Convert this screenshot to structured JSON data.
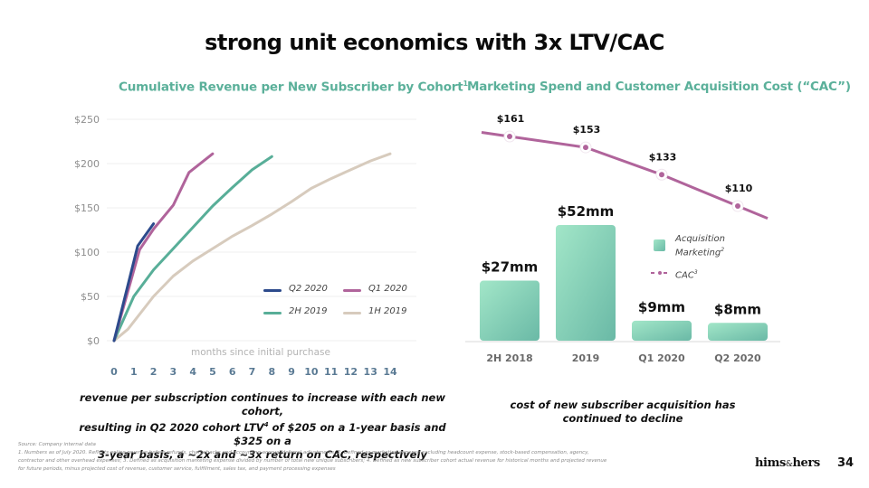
{
  "slide": {
    "title": "strong unit economics with 3x LTV/CAC",
    "page_number": "34",
    "brand": {
      "left": "hims",
      "amp": "&",
      "right": "hers"
    },
    "colors": {
      "accent_teal": "#5bb09a",
      "q2_2020": "#2c4a8c",
      "q1_2020": "#b0649b",
      "h2_2019": "#58ae98",
      "h1_2019": "#d7cbbd",
      "bar_top": "#9fe3c4",
      "bar_bottom": "#6cbca8",
      "cac_line": "#b0649b"
    }
  },
  "left_panel": {
    "subtitle": "Cumulative Revenue per New Subscriber by Cohort",
    "subtitle_sup": "1",
    "caption_lines": [
      "revenue per subscription continues to increase with each new cohort,",
      "resulting in Q2 2020 cohort LTV",
      "4",
      " of $205 on a 1-year basis and $325 on a",
      "3-year basis, a ~2x and ~3x return on CAC, respectively"
    ]
  },
  "right_panel": {
    "subtitle": "Marketing Spend and Customer Acquisition Cost (“CAC”)",
    "caption_lines": [
      "cost of new subscriber acquisition has",
      "continued to decline"
    ],
    "legend": {
      "bar_label_1": "Acquisition",
      "bar_label_2": "Marketing",
      "bar_sup": "2",
      "line_label": "CAC",
      "line_sup": "3"
    }
  },
  "footnotes": [
    "Source: Company internal data",
    "1. Numbers as of July 2020. Reflects online revenue before refunds, chargebacks and accounting accrual/deferral adjustments; 2. Defined as marketing expense excluding headcount expense, stock-based compensation, agency,",
    "contractor and other overhead expenses; 3. Defined as acquisition marketing expense divided by number of total new unique subscribers; 4. Defined as new subscriber cohort actual revenue for historical months and projected revenue",
    "for future periods, minus projected cost of revenue, customer service, fulfillment, sales tax, and payment processing expenses"
  ],
  "chart_data": [
    {
      "type": "line",
      "title": "Cumulative Revenue per New Subscriber by Cohort",
      "xlabel": "months since initial purchase",
      "ylabel": "",
      "x_ticks": [
        "0",
        "1",
        "2",
        "3",
        "4",
        "5",
        "6",
        "7",
        "8",
        "9",
        "10",
        "11",
        "12",
        "13",
        "14"
      ],
      "y_ticks": [
        "$0",
        "$50",
        "$100",
        "$150",
        "$200",
        "$250"
      ],
      "xlim": [
        0,
        14
      ],
      "ylim": [
        0,
        250
      ],
      "grid": true,
      "legend_position": "bottom-right",
      "series": [
        {
          "name": "Q2 2020",
          "color_key": "q2_2020",
          "points": [
            [
              0,
              0
            ],
            [
              1.2,
              107
            ],
            [
              2,
              132
            ]
          ]
        },
        {
          "name": "Q1 2020",
          "color_key": "q1_2020",
          "points": [
            [
              0,
              0
            ],
            [
              1.3,
              103
            ],
            [
              2,
              126
            ],
            [
              3,
              153
            ],
            [
              3.8,
              190
            ],
            [
              5,
              211
            ]
          ]
        },
        {
          "name": "2H 2019",
          "color_key": "h2_2019",
          "points": [
            [
              0,
              0
            ],
            [
              1,
              50
            ],
            [
              2,
              80
            ],
            [
              3,
              104
            ],
            [
              4,
              128
            ],
            [
              5,
              152
            ],
            [
              6,
              173
            ],
            [
              7,
              193
            ],
            [
              8,
              208
            ]
          ]
        },
        {
          "name": "1H 2019",
          "color_key": "h1_2019",
          "points": [
            [
              0,
              0
            ],
            [
              0.7,
              13
            ],
            [
              2,
              50
            ],
            [
              3,
              73
            ],
            [
              4,
              90
            ],
            [
              5,
              104
            ],
            [
              6,
              118
            ],
            [
              7,
              130
            ],
            [
              8,
              143
            ],
            [
              9,
              157
            ],
            [
              10,
              172
            ],
            [
              11,
              183
            ],
            [
              12,
              193
            ],
            [
              13,
              203
            ],
            [
              14,
              211
            ]
          ]
        }
      ]
    },
    {
      "type": "bar",
      "title": "Marketing Spend and Customer Acquisition Cost (“CAC”)",
      "categories": [
        "2H 2018",
        "2019",
        "Q1 2020",
        "Q2 2020"
      ],
      "series": [
        {
          "name": "Acquisition Marketing",
          "unit": "$mm",
          "values": [
            27,
            52,
            9,
            8
          ],
          "labels": [
            "$27mm",
            "$52mm",
            "$9mm",
            "$8mm"
          ]
        },
        {
          "name": "CAC",
          "type": "line",
          "unit": "$",
          "values": [
            161,
            153,
            133,
            110
          ],
          "labels": [
            "$161",
            "$153",
            "$133",
            "$110"
          ]
        }
      ],
      "xlabel": "",
      "ylabel": "",
      "grid": false,
      "legend_position": "right"
    }
  ]
}
